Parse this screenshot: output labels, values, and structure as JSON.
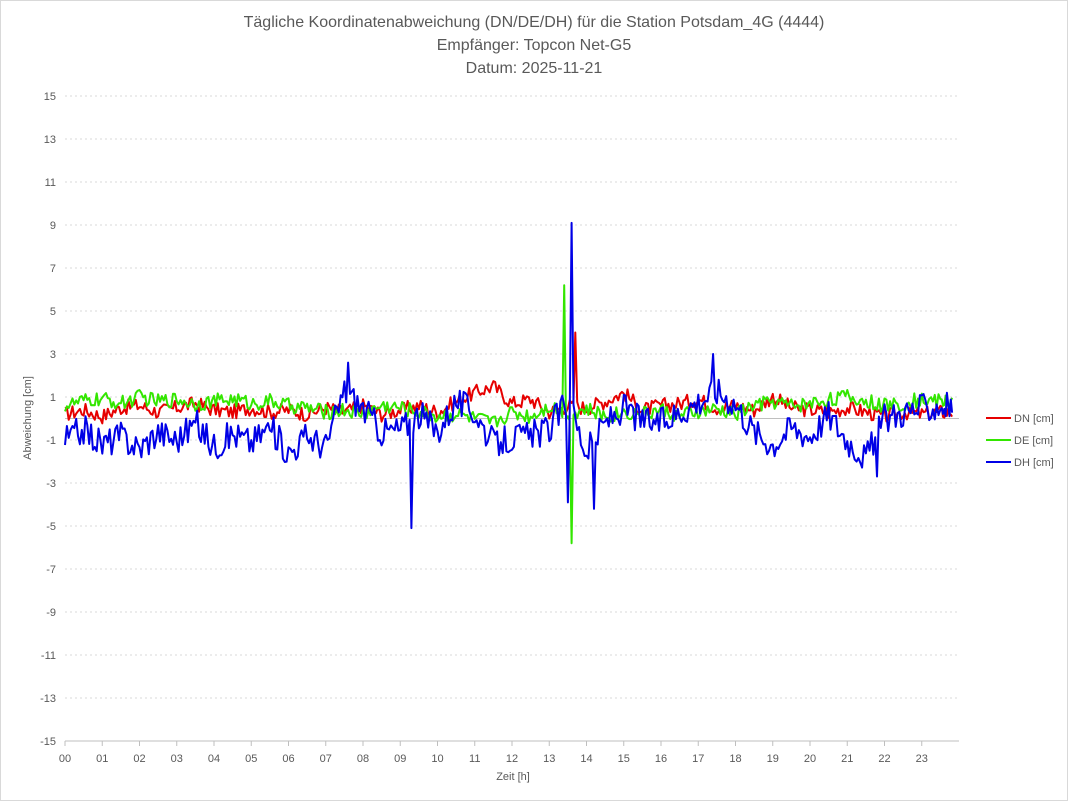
{
  "chart_data": {
    "type": "line",
    "title": [
      "Tägliche Koordinatenabweichung (DN/DE/DH) für die Station Potsdam_4G (4444)",
      "Empfänger: Topcon Net-G5",
      "Datum: 2025-11-21"
    ],
    "xlabel": "Zeit [h]",
    "ylabel": "Abweichung [cm]",
    "xlim": [
      0,
      24
    ],
    "ylim": [
      -15,
      15
    ],
    "x_ticks": [
      "00",
      "01",
      "02",
      "03",
      "04",
      "05",
      "06",
      "07",
      "08",
      "09",
      "10",
      "11",
      "12",
      "13",
      "14",
      "15",
      "16",
      "17",
      "18",
      "19",
      "20",
      "21",
      "22",
      "23"
    ],
    "y_ticks": [
      "15",
      "13",
      "11",
      "9",
      "7",
      "5",
      "3",
      "1",
      "-1",
      "-3",
      "-5",
      "-7",
      "-9",
      "-11",
      "-13",
      "-15"
    ],
    "grid": true,
    "legend_position": "right",
    "x": [
      0,
      0.5,
      1,
      1.5,
      2,
      2.5,
      3,
      3.5,
      4,
      4.5,
      5,
      5.5,
      6,
      6.5,
      7,
      7.5,
      8,
      8.5,
      9,
      9.5,
      10,
      10.5,
      11,
      11.5,
      12,
      12.5,
      13,
      13.5,
      14,
      14.5,
      15,
      15.5,
      16,
      16.5,
      17,
      17.5,
      18,
      18.5,
      19,
      19.5,
      20,
      20.5,
      21,
      21.5,
      22,
      22.5,
      23,
      23.5
    ],
    "series": [
      {
        "name": "DN [cm]",
        "color": "#e60000",
        "values": [
          0.2,
          0.4,
          0.1,
          0.5,
          0.6,
          0.3,
          0.5,
          0.7,
          0.4,
          0.3,
          0.5,
          0.3,
          0.4,
          0.2,
          0.5,
          0.3,
          0.6,
          0.2,
          0.4,
          0.6,
          0.3,
          0.8,
          1.2,
          1.5,
          0.7,
          0.9,
          0.3,
          0.6,
          0.5,
          0.8,
          1.2,
          0.4,
          0.6,
          0.7,
          0.9,
          0.5,
          0.6,
          0.4,
          1.0,
          0.5,
          0.4,
          0.3,
          0.5,
          0.3,
          0.1,
          0.3,
          0.2,
          0.3
        ]
      },
      {
        "name": "DE [cm]",
        "color": "#33e600",
        "values": [
          0.6,
          0.8,
          0.9,
          0.7,
          1.0,
          0.8,
          0.9,
          0.7,
          0.8,
          0.9,
          0.7,
          0.8,
          0.6,
          0.5,
          0.3,
          0.4,
          0.2,
          0.6,
          0.5,
          0.3,
          0.1,
          0.2,
          0.0,
          -0.2,
          0.3,
          0.1,
          0.6,
          0.2,
          0.4,
          0.1,
          0.3,
          0.2,
          0.4,
          0.1,
          0.3,
          0.4,
          0.2,
          0.6,
          0.8,
          0.6,
          0.7,
          0.9,
          1.0,
          0.8,
          0.6,
          0.7,
          0.9,
          0.8
        ]
      },
      {
        "name": "DH [cm]",
        "color": "#0000e6",
        "values": [
          -1.0,
          -0.5,
          -1.2,
          -0.8,
          -1.4,
          -0.6,
          -1.0,
          -0.2,
          -1.3,
          -0.7,
          -1.1,
          -0.4,
          -1.6,
          -0.8,
          -1.3,
          1.3,
          0.5,
          -0.6,
          -0.5,
          0.2,
          -0.6,
          0.8,
          0.3,
          -1.2,
          -0.9,
          -0.8,
          -0.5,
          0.9,
          -1.6,
          -0.2,
          0.5,
          -0.1,
          -0.2,
          0.3,
          0.8,
          1.3,
          0.7,
          -0.6,
          -1.2,
          -0.4,
          -0.8,
          0.2,
          -1.0,
          -1.8,
          0.0,
          0.3,
          0.5,
          0.6
        ]
      }
    ],
    "spikes": [
      {
        "series": "DH [cm]",
        "x": 9.3,
        "y": -5.1
      },
      {
        "series": "DE [cm]",
        "x": 13.4,
        "y": 6.2
      },
      {
        "series": "DE [cm]",
        "x": 13.6,
        "y": -5.8
      },
      {
        "series": "DH [cm]",
        "x": 13.6,
        "y": 9.1
      },
      {
        "series": "DH [cm]",
        "x": 13.5,
        "y": -3.9
      },
      {
        "series": "DN [cm]",
        "x": 13.7,
        "y": 4.0
      },
      {
        "series": "DH [cm]",
        "x": 14.2,
        "y": -4.2
      },
      {
        "series": "DH [cm]",
        "x": 17.4,
        "y": 3.0
      },
      {
        "series": "DH [cm]",
        "x": 7.6,
        "y": 2.6
      },
      {
        "series": "DH [cm]",
        "x": 21.8,
        "y": -2.7
      }
    ]
  }
}
